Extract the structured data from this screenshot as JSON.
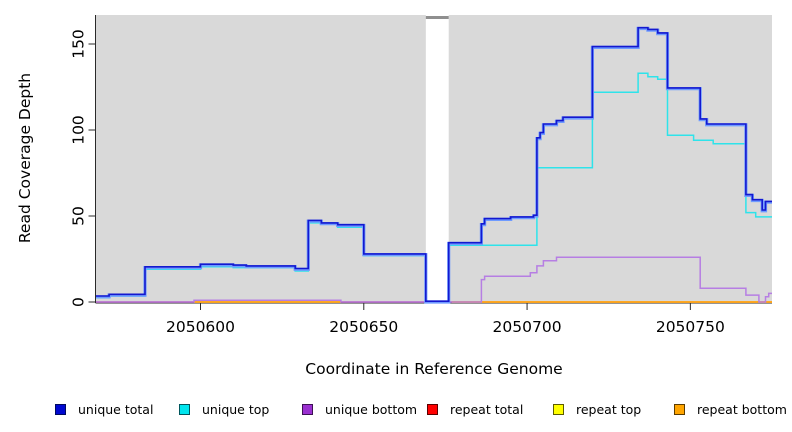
{
  "y_axis": {
    "title": "Read Coverage Depth",
    "tick_labels": [
      "0",
      "50",
      "100",
      "150"
    ],
    "tick_values": [
      0,
      50,
      100,
      150
    ]
  },
  "x_axis": {
    "title": "Coordinate in Reference Genome",
    "tick_labels": [
      "2050600",
      "2050650",
      "2050700",
      "2050750"
    ],
    "tick_values": [
      2050600,
      2050650,
      2050700,
      2050750
    ]
  },
  "legend": {
    "items": [
      {
        "label": "unique total",
        "fill": "#0008d0",
        "border": "#000a60"
      },
      {
        "label": "unique top",
        "fill": "#00e5ee",
        "border": "#00565c"
      },
      {
        "label": "unique bottom",
        "fill": "#9a30d0",
        "border": "#3d1154"
      },
      {
        "label": "repeat total",
        "fill": "#ff0000",
        "border": "#5c0000"
      },
      {
        "label": "repeat top",
        "fill": "#ffff00",
        "border": "#5c5c00"
      },
      {
        "label": "repeat bottom",
        "fill": "#ffa500",
        "border": "#5c3c00"
      }
    ]
  },
  "chart_data": {
    "type": "line",
    "step": true,
    "title": "",
    "xlabel": "Coordinate in Reference Genome",
    "ylabel": "Read Coverage Depth",
    "xlim": [
      2050568,
      2050775
    ],
    "ylim": [
      0,
      167
    ],
    "grid": false,
    "plot_background": "#d9d9d9",
    "legend_position": "bottom",
    "gap_region": {
      "from": 2050669,
      "to": 2050676,
      "note": "white band, coverage drops to 0"
    },
    "series": [
      {
        "name": "repeat total",
        "color": "#e8446e",
        "width": 1.4,
        "points": [
          [
            2050568,
            0
          ]
        ]
      },
      {
        "name": "repeat top",
        "color": "#ffff00",
        "width": 1.4,
        "points": [
          [
            2050568,
            null
          ],
          [
            2050598,
            0
          ],
          [
            2050643,
            null
          ],
          [
            2050677,
            0
          ]
        ]
      },
      {
        "name": "repeat bottom",
        "color": "#ffa41e",
        "width": 1.8,
        "points": [
          [
            2050568,
            null
          ],
          [
            2050598,
            0
          ],
          [
            2050643,
            null
          ],
          [
            2050677,
            0
          ]
        ]
      },
      {
        "name": "unique bottom",
        "color": "#b67ee3",
        "width": 1.5,
        "points": [
          [
            2050568,
            0
          ],
          [
            2050598,
            1
          ],
          [
            2050643,
            0
          ],
          [
            2050686,
            13
          ],
          [
            2050687,
            15
          ],
          [
            2050701,
            17
          ],
          [
            2050703,
            21
          ],
          [
            2050705,
            24
          ],
          [
            2050709,
            26
          ],
          [
            2050753,
            8
          ],
          [
            2050767,
            4
          ],
          [
            2050771,
            0
          ],
          [
            2050773,
            3
          ],
          [
            2050774,
            5
          ]
        ]
      },
      {
        "name": "unique top",
        "color": "#2ee3ea",
        "width": 1.5,
        "points": [
          [
            2050568,
            2.5
          ],
          [
            2050572,
            3.5
          ],
          [
            2050583,
            19
          ],
          [
            2050600,
            20.5
          ],
          [
            2050610,
            20
          ],
          [
            2050629,
            18
          ],
          [
            2050633,
            46
          ],
          [
            2050642,
            43.5
          ],
          [
            2050650,
            27
          ],
          [
            2050669,
            0
          ],
          [
            2050676,
            33
          ],
          [
            2050703,
            78
          ],
          [
            2050720,
            122
          ],
          [
            2050734,
            133
          ],
          [
            2050737,
            131
          ],
          [
            2050740,
            129.5
          ],
          [
            2050743,
            97
          ],
          [
            2050751,
            94
          ],
          [
            2050757,
            92
          ],
          [
            2050767,
            52
          ],
          [
            2050770,
            49.5
          ]
        ]
      },
      {
        "name": "unique total",
        "color": "#1418cf",
        "halo": "#6f9bff",
        "width": 1.6,
        "points": [
          [
            2050568,
            3
          ],
          [
            2050572,
            4
          ],
          [
            2050583,
            20
          ],
          [
            2050600,
            21.5
          ],
          [
            2050610,
            21
          ],
          [
            2050614,
            20.5
          ],
          [
            2050629,
            19
          ],
          [
            2050633,
            47
          ],
          [
            2050637,
            45.5
          ],
          [
            2050642,
            44.5
          ],
          [
            2050650,
            27.5
          ],
          [
            2050669,
            0
          ],
          [
            2050676,
            34
          ],
          [
            2050686,
            45
          ],
          [
            2050687,
            48
          ],
          [
            2050695,
            49
          ],
          [
            2050702,
            50
          ],
          [
            2050703,
            95
          ],
          [
            2050704,
            98
          ],
          [
            2050705,
            103
          ],
          [
            2050709,
            105
          ],
          [
            2050711,
            107
          ],
          [
            2050720,
            148
          ],
          [
            2050734,
            159
          ],
          [
            2050737,
            158
          ],
          [
            2050740,
            156
          ],
          [
            2050743,
            124
          ],
          [
            2050753,
            106
          ],
          [
            2050755,
            103
          ],
          [
            2050767,
            62
          ],
          [
            2050769,
            59
          ],
          [
            2050772,
            53
          ],
          [
            2050773,
            58
          ]
        ]
      }
    ]
  }
}
